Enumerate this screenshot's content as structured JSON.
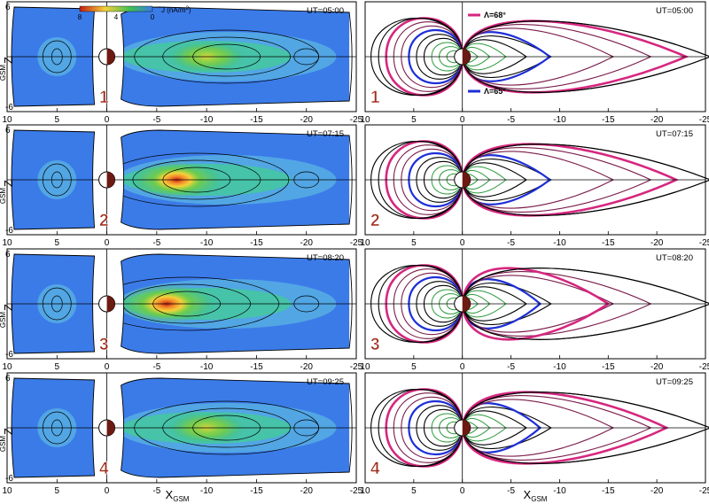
{
  "figure": {
    "x_axis_label": "X",
    "x_axis_sub": "GSM",
    "y_axis_label": "Z",
    "y_axis_sub": "GSM",
    "colorbar": {
      "label": "J (nA/m",
      "label_sup": "2",
      "label_end": ")",
      "ticks": [
        "8",
        "4",
        "0"
      ],
      "colors": [
        "#c41d12",
        "#f5d13a",
        "#3fbf55",
        "#3b7be8"
      ]
    },
    "line_legend": [
      {
        "text": "Λ=68°",
        "color": "#d6277f"
      },
      {
        "text": "Λ=65°",
        "color": "#1e2fd6"
      }
    ]
  },
  "chart_data": {
    "type": "heatmap",
    "xlim": [
      10,
      -25
    ],
    "ylim": [
      -6,
      6
    ],
    "x_ticks": [
      10,
      5,
      0,
      -5,
      -10,
      -15,
      -20,
      -25
    ],
    "x_tick_labels": [
      "10",
      "5",
      "0",
      "-5",
      "-10",
      "-15",
      "-20",
      "-25"
    ],
    "y_tick_labels": [
      "6",
      "-6"
    ],
    "panels": [
      {
        "row": 0,
        "number": "1",
        "ut": "UT=05:00",
        "current_peak": {
          "x": -10,
          "j": 4
        }
      },
      {
        "row": 1,
        "number": "2",
        "ut": "UT=07:15",
        "current_peak": {
          "x": -7,
          "j": 7
        }
      },
      {
        "row": 2,
        "number": "3",
        "ut": "UT=08:20",
        "current_peak": {
          "x": -6,
          "j": 8
        }
      },
      {
        "row": 3,
        "number": "4",
        "ut": "UT=09:25",
        "current_peak": {
          "x": -10,
          "j": 4
        }
      }
    ],
    "field_line_tail_extent": {
      "L68": [
        -23,
        -22,
        -15,
        -21
      ],
      "L65": [
        -9,
        -9,
        -8,
        -8
      ]
    }
  }
}
